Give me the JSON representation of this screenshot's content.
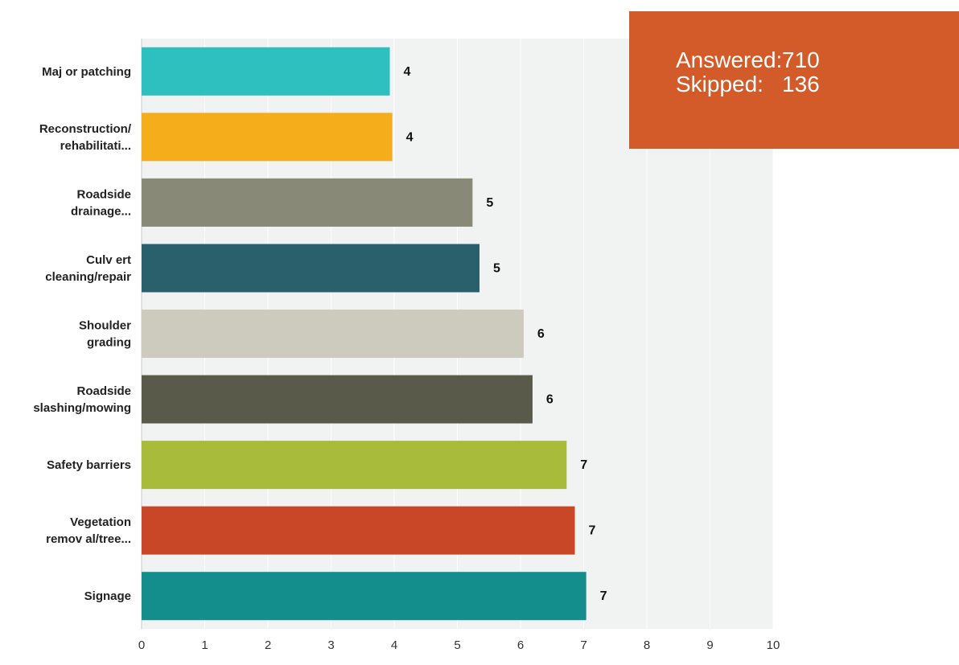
{
  "summary": {
    "answered_label": "Answered:",
    "answered_value": "710",
    "skipped_label": "Skipped:",
    "skipped_value": "136"
  },
  "chart_data": {
    "type": "bar",
    "orientation": "horizontal",
    "title": "",
    "xlabel": "",
    "ylabel": "",
    "xlim": [
      0,
      10
    ],
    "ticks": [
      "0",
      "1",
      "2",
      "3",
      "4",
      "5",
      "6",
      "7",
      "8",
      "9",
      "10"
    ],
    "grid": true,
    "categories": [
      [
        "Maj or patching"
      ],
      [
        "Reconstruction/",
        "rehabilitati..."
      ],
      [
        "Roadside",
        "drainage..."
      ],
      [
        "Culv ert",
        "cleaning/repair"
      ],
      [
        "Shoulder",
        "grading"
      ],
      [
        "Roadside",
        "slashing/mowing"
      ],
      [
        "Safety barriers"
      ],
      [
        "Vegetation",
        "remov al/tree..."
      ],
      [
        "Signage"
      ]
    ],
    "values": [
      3.93,
      3.97,
      5.24,
      5.35,
      6.05,
      6.19,
      6.73,
      6.86,
      7.04
    ],
    "value_labels": [
      "4",
      "4",
      "5",
      "5",
      "6",
      "6",
      "7",
      "7",
      "7"
    ],
    "colors": [
      "#2ebfbf",
      "#f5ad1c",
      "#898977",
      "#2a5f6c",
      "#cdcbbe",
      "#5a5a4b",
      "#a9bb3b",
      "#c94626",
      "#148d8d"
    ]
  }
}
